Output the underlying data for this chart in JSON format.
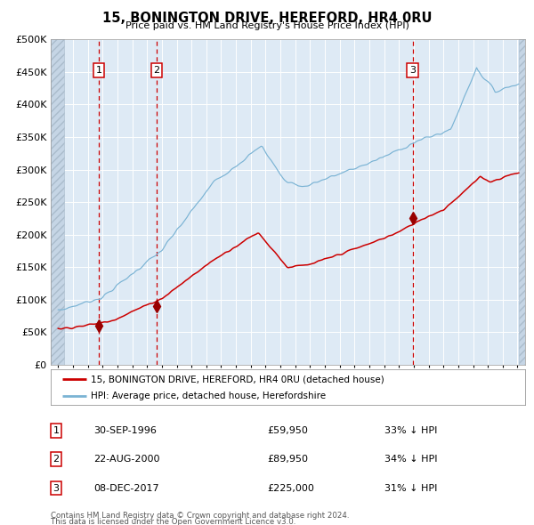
{
  "title": "15, BONINGTON DRIVE, HEREFORD, HR4 0RU",
  "subtitle": "Price paid vs. HM Land Registry's House Price Index (HPI)",
  "xlim": [
    1993.5,
    2025.5
  ],
  "ylim": [
    0,
    500000
  ],
  "yticks": [
    0,
    50000,
    100000,
    150000,
    200000,
    250000,
    300000,
    350000,
    400000,
    450000,
    500000
  ],
  "ytick_labels": [
    "£0",
    "£50K",
    "£100K",
    "£150K",
    "£200K",
    "£250K",
    "£300K",
    "£350K",
    "£400K",
    "£450K",
    "£500K"
  ],
  "xticks": [
    1994,
    1995,
    1996,
    1997,
    1998,
    1999,
    2000,
    2001,
    2002,
    2003,
    2004,
    2005,
    2006,
    2007,
    2008,
    2009,
    2010,
    2011,
    2012,
    2013,
    2014,
    2015,
    2016,
    2017,
    2018,
    2019,
    2020,
    2021,
    2022,
    2023,
    2024,
    2025
  ],
  "hpi_color": "#7ab3d4",
  "price_color": "#cc0000",
  "sale_dot_color": "#990000",
  "bg_color": "#deeaf5",
  "hatch_bg_color": "#c5d5e5",
  "grid_color": "#ffffff",
  "vline_color": "#cc0000",
  "sales": [
    {
      "date": 1996.747,
      "price": 59950,
      "label": "1"
    },
    {
      "date": 2000.644,
      "price": 89950,
      "label": "2"
    },
    {
      "date": 2017.927,
      "price": 225000,
      "label": "3"
    }
  ],
  "legend_price_label": "15, BONINGTON DRIVE, HEREFORD, HR4 0RU (detached house)",
  "legend_hpi_label": "HPI: Average price, detached house, Herefordshire",
  "table_rows": [
    {
      "num": "1",
      "date": "30-SEP-1996",
      "price": "£59,950",
      "note": "33% ↓ HPI"
    },
    {
      "num": "2",
      "date": "22-AUG-2000",
      "price": "£89,950",
      "note": "34% ↓ HPI"
    },
    {
      "num": "3",
      "date": "08-DEC-2017",
      "price": "£225,000",
      "note": "31% ↓ HPI"
    }
  ],
  "footnote_line1": "Contains HM Land Registry data © Crown copyright and database right 2024.",
  "footnote_line2": "This data is licensed under the Open Government Licence v3.0.",
  "hatch_left_x": 1993.5,
  "hatch_left_end": 1994.42,
  "hatch_right_start": 2025.08,
  "hatch_right_x": 2025.5
}
